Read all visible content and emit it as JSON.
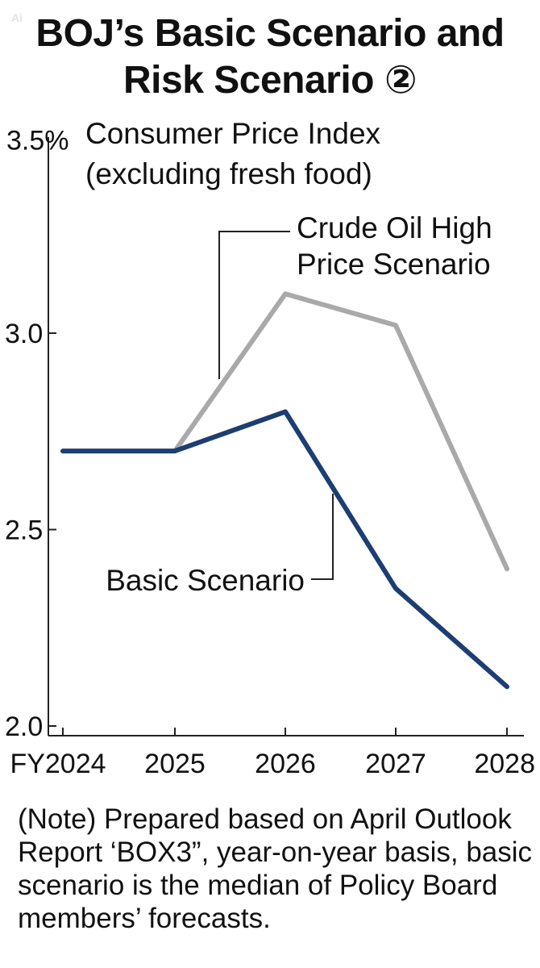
{
  "title_lines": [
    "BOJ’s Basic Scenario and",
    "Risk Scenario ②"
  ],
  "watermark": "Ai",
  "note": "(Note) Prepared based on April Outlook Report ‘BOX3”, year-on-year basis, basic scenario is the median of Policy Board members’ forecasts.",
  "colors": {
    "basic": "#1d3e71",
    "risk": "#a9a9a9",
    "axis": "#222222"
  },
  "chart_data": {
    "type": "line",
    "title": "BOJ’s Basic Scenario and Risk Scenario ②",
    "subtitle_lines": [
      "Consumer Price Index",
      "(excluding fresh food)"
    ],
    "categories": [
      "FY2024",
      "2025",
      "2026",
      "2027",
      "2028"
    ],
    "y_tick_labels": [
      "3.5%",
      "3.0",
      "2.5",
      "2.0"
    ],
    "y_ticks": [
      3.5,
      3.0,
      2.5,
      2.0
    ],
    "ylim": [
      2.0,
      3.5
    ],
    "grid": false,
    "series": [
      {
        "name": "Basic Scenario",
        "values": [
          2.7,
          2.7,
          2.8,
          2.35,
          2.1
        ]
      },
      {
        "name_lines": [
          "Crude Oil High",
          "Price Scenario"
        ],
        "values": [
          null,
          2.7,
          3.1,
          3.02,
          2.4
        ]
      }
    ]
  }
}
